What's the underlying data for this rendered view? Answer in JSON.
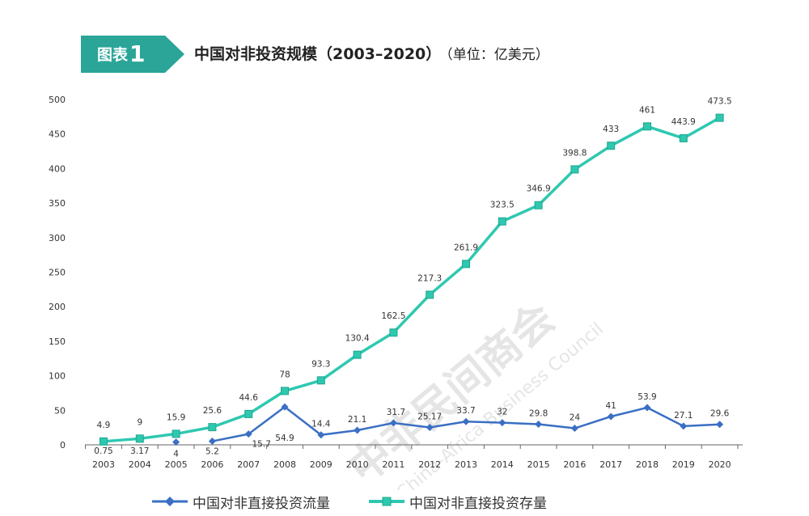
{
  "header": {
    "badge_label": "图表",
    "badge_number": "1",
    "title": "中国对非投资规模（2003–2020）",
    "unit": "（单位：亿美元）"
  },
  "watermark": {
    "text": "中非民间商会",
    "english": "China-Africa Business Council"
  },
  "chart_data": {
    "type": "line",
    "x": [
      "2003",
      "2004",
      "2005",
      "2006",
      "2007",
      "2008",
      "2009",
      "2010",
      "2011",
      "2012",
      "2013",
      "2014",
      "2015",
      "2016",
      "2017",
      "2018",
      "2019",
      "2020"
    ],
    "ylim": [
      0,
      500
    ],
    "yticks": [
      0,
      50,
      100,
      150,
      200,
      250,
      300,
      350,
      400,
      450,
      500
    ],
    "grid": false,
    "legend_position": "bottom",
    "series": [
      {
        "name": "中国对非直接投资流量",
        "color": "#3a6fc4",
        "marker": "diamond",
        "values": [
          0.75,
          3.17,
          4,
          5.2,
          15.7,
          54.9,
          14.4,
          21.1,
          31.7,
          25.17,
          33.7,
          32,
          29.8,
          24,
          41,
          53.9,
          27.1,
          29.6
        ],
        "labels": [
          "0.75",
          "3.17",
          "4",
          "5.2",
          "15.7",
          "54.9",
          "14.4",
          "21.1",
          "31.7",
          "25.17",
          "33.7",
          "32",
          "29.8",
          "24",
          "41",
          "53.9",
          "27.1",
          "29.6"
        ]
      },
      {
        "name": "中国对非直接投资存量",
        "color": "#2ec8b0",
        "marker": "square",
        "values": [
          4.9,
          9,
          15.9,
          25.6,
          44.6,
          78,
          93.3,
          130.4,
          162.5,
          217.3,
          261.9,
          323.5,
          346.9,
          398.8,
          433,
          461,
          443.9,
          473.5
        ],
        "labels": [
          "4.9",
          "9",
          "15.9",
          "25.6",
          "44.6",
          "78",
          "93.3",
          "130.4",
          "162.5",
          "217.3",
          "261.9",
          "323.5",
          "346.9",
          "398.8",
          "433",
          "461",
          "443.9",
          "473.5"
        ]
      }
    ]
  }
}
